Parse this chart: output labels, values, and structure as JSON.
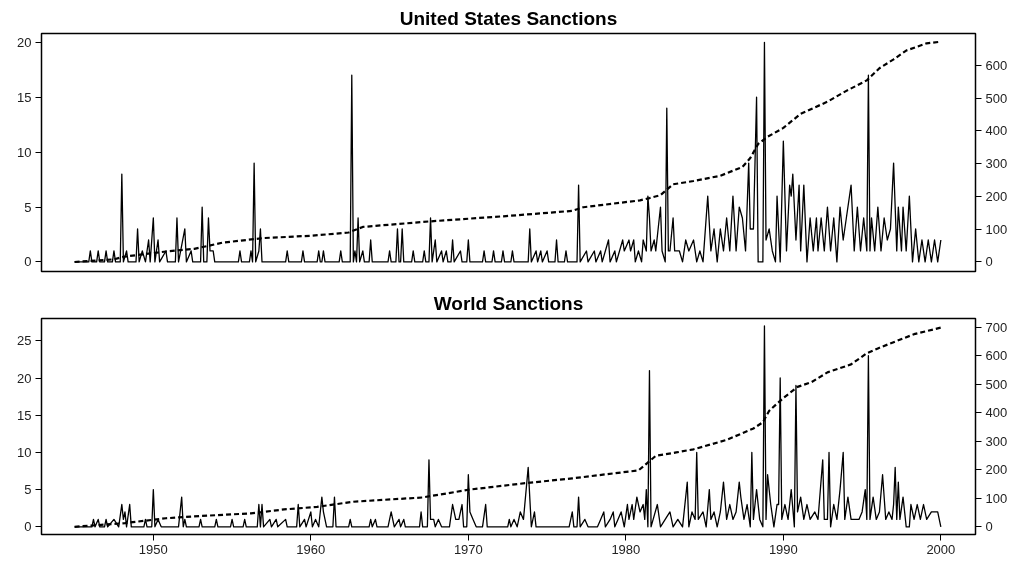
{
  "chart_data": [
    {
      "type": "line",
      "title": "United States Sanctions",
      "xlim": [
        1942.9,
        2002.2
      ],
      "ylim": [
        -0.87,
        20.8
      ],
      "yticks": [
        0,
        5,
        10,
        15,
        20
      ],
      "y2lim": [
        -29,
        697
      ],
      "y2ticks": [
        0,
        100,
        200,
        300,
        400,
        500,
        600
      ],
      "tick_labels": "y",
      "series": [
        {
          "color": "#000000",
          "line_style": "solid",
          "x": [
            1945.0,
            1945.9,
            1946.0,
            1946.1,
            1946.4,
            1946.5,
            1946.6,
            1946.9,
            1947.0,
            1947.1,
            1947.4,
            1947.5,
            1947.6,
            1947.9,
            1948.0,
            1948.1,
            1948.3,
            1948.4,
            1948.9,
            1949.0,
            1949.1,
            1949.3,
            1949.5,
            1949.7,
            1949.8,
            1950.0,
            1950.1,
            1950.3,
            1950.4,
            1950.8,
            1950.9,
            1951.4,
            1951.5,
            1951.6,
            1952.0,
            1952.1,
            1952.4,
            1952.5,
            1953.0,
            1953.1,
            1953.2,
            1953.4,
            1953.5,
            1953.6,
            1953.8,
            1953.9,
            1955.4,
            1955.5,
            1955.6,
            1956.1,
            1956.2,
            1956.3,
            1956.4,
            1956.5,
            1956.7,
            1956.8,
            1956.9,
            1958.4,
            1958.5,
            1958.6,
            1959.4,
            1959.5,
            1959.6,
            1960.4,
            1960.5,
            1960.6,
            1960.7,
            1960.8,
            1960.9,
            1961.8,
            1961.9,
            1962.0,
            1962.5,
            1962.6,
            1962.7,
            1962.8,
            1962.9,
            1963.0,
            1963.1,
            1963.3,
            1963.4,
            1963.7,
            1963.8,
            1963.9,
            1964.9,
            1965.0,
            1965.1,
            1965.4,
            1965.5,
            1965.6,
            1965.7,
            1965.8,
            1965.9,
            1966.4,
            1966.5,
            1966.6,
            1967.1,
            1967.2,
            1967.3,
            1967.5,
            1967.6,
            1967.7,
            1967.9,
            1968.0,
            1968.3,
            1968.4,
            1968.6,
            1968.7,
            1968.9,
            1969.0,
            1969.1,
            1969.5,
            1969.6,
            1969.9,
            1970.0,
            1970.1,
            1970.9,
            1971.0,
            1971.1,
            1971.5,
            1971.6,
            1971.7,
            1972.1,
            1972.2,
            1972.3,
            1972.7,
            1972.8,
            1972.9,
            1973.8,
            1973.9,
            1974.0,
            1974.3,
            1974.4,
            1974.6,
            1974.7,
            1975.0,
            1975.1,
            1975.5,
            1975.6,
            1975.7,
            1976.1,
            1976.2,
            1976.3,
            1976.9,
            1977.0,
            1977.1,
            1977.5,
            1977.6,
            1978.0,
            1978.1,
            1978.4,
            1978.5,
            1978.9,
            1979.0,
            1979.3,
            1979.4,
            1979.8,
            1979.9,
            1980.2,
            1980.3,
            1980.5,
            1980.6,
            1980.8,
            1981.0,
            1981.1,
            1981.3,
            1981.4,
            1981.5,
            1981.6,
            1981.8,
            1981.9,
            1982.2,
            1982.3,
            1982.5,
            1982.6,
            1982.7,
            1982.8,
            1983.0,
            1983.1,
            1983.4,
            1983.6,
            1983.8,
            1984.0,
            1984.3,
            1984.5,
            1984.7,
            1984.9,
            1985.2,
            1985.4,
            1985.6,
            1985.8,
            1986.0,
            1986.2,
            1986.4,
            1986.6,
            1986.8,
            1987.0,
            1987.2,
            1987.4,
            1987.6,
            1987.8,
            1987.9,
            1988.1,
            1988.3,
            1988.4,
            1988.7,
            1988.8,
            1988.9,
            1989.1,
            1989.3,
            1989.5,
            1989.6,
            1989.8,
            1990.0,
            1990.2,
            1990.4,
            1990.5,
            1990.6,
            1990.8,
            1991.0,
            1991.1,
            1991.3,
            1991.5,
            1991.7,
            1991.9,
            1992.1,
            1992.2,
            1992.4,
            1992.6,
            1992.8,
            1993.0,
            1993.2,
            1993.4,
            1993.6,
            1993.8,
            1994.0,
            1994.3,
            1994.5,
            1994.7,
            1994.9,
            1995.1,
            1995.3,
            1995.4,
            1995.5,
            1995.6,
            1995.8,
            1996.0,
            1996.2,
            1996.4,
            1996.6,
            1996.8,
            1997.0,
            1997.2,
            1997.3,
            1997.5,
            1997.6,
            1997.8,
            1998.0,
            1998.2,
            1998.4,
            1998.6,
            1998.8,
            1999.0,
            1999.2,
            1999.4,
            1999.6,
            1999.8,
            2000.0
          ],
          "values": [
            0,
            0,
            1,
            0,
            0,
            1,
            0,
            0,
            1,
            0,
            0,
            1,
            0,
            0,
            8,
            0,
            1,
            0,
            0,
            3,
            0,
            1,
            0,
            2,
            0,
            4,
            0,
            2,
            0,
            1,
            0,
            0,
            4,
            0,
            3,
            0,
            1,
            0,
            0,
            5,
            0,
            0,
            4,
            1,
            1,
            0,
            0,
            1,
            0,
            0,
            1,
            0,
            9,
            0,
            1,
            3,
            0,
            0,
            1,
            0,
            0,
            1,
            0,
            0,
            1,
            0,
            0,
            1,
            0,
            0,
            1,
            0,
            0,
            17,
            0,
            1,
            0,
            4,
            0,
            1,
            0,
            0,
            2,
            0,
            0,
            1,
            0,
            0,
            3,
            0,
            0,
            3,
            0,
            0,
            1,
            0,
            0,
            1,
            0,
            0,
            4,
            0,
            2,
            0,
            1,
            0,
            1,
            0,
            0,
            2,
            0,
            1,
            0,
            0,
            2,
            0,
            0,
            1,
            0,
            0,
            1,
            0,
            0,
            1,
            0,
            0,
            1,
            0,
            0,
            3,
            0,
            1,
            0,
            1,
            0,
            1,
            0,
            0,
            2,
            0,
            0,
            1,
            0,
            0,
            7,
            0,
            1,
            0,
            1,
            0,
            1,
            0,
            2,
            0,
            1,
            0,
            2,
            1,
            2,
            1,
            2,
            0,
            1,
            0,
            2,
            1,
            6,
            4,
            1,
            2,
            1,
            5,
            1,
            0,
            14,
            1,
            1,
            4,
            1,
            1,
            0,
            2,
            1,
            2,
            0,
            1,
            0,
            6,
            1,
            3,
            0,
            3,
            1,
            4,
            1,
            6,
            1,
            5,
            4,
            1,
            9,
            3,
            3,
            15,
            0,
            0,
            20,
            2,
            3,
            1,
            0,
            6,
            0,
            11,
            1,
            7,
            6,
            8,
            2,
            7,
            1,
            7,
            0,
            4,
            1,
            4,
            1,
            4,
            1,
            5,
            1,
            4,
            0,
            5,
            2,
            4,
            7,
            1,
            5,
            1,
            4,
            1,
            17,
            1,
            4,
            1,
            5,
            1,
            4,
            2,
            3,
            9,
            1,
            5,
            1,
            5,
            1,
            6,
            0,
            3,
            0,
            2,
            0,
            2,
            0,
            2,
            0,
            2
          ]
        },
        {
          "color": "#000000",
          "line_style": "dashed",
          "axis": "y2",
          "x": [
            1945.0,
            1946.5,
            1947.5,
            1948.1,
            1950.8,
            1952.6,
            1954.4,
            1957.0,
            1960.0,
            1962.4,
            1963.3,
            1967.6,
            1972.4,
            1976.6,
            1977.3,
            1980.9,
            1981.5,
            1982.2,
            1983.0,
            1984.3,
            1986.0,
            1987.4,
            1987.9,
            1988.4,
            1989.0,
            1990.0,
            1991.1,
            1992.8,
            1994.0,
            1995.3,
            1996.1,
            1997.0,
            1997.8,
            1999.1,
            2000.0
          ],
          "values": [
            0,
            5,
            8,
            16,
            32,
            40,
            59,
            73,
            80,
            90,
            107,
            124,
            140,
            156,
            167,
            188,
            195,
            204,
            237,
            247,
            263,
            290,
            317,
            360,
            382,
            409,
            452,
            489,
            522,
            554,
            591,
            618,
            645,
            667,
            672
          ]
        }
      ]
    },
    {
      "type": "line",
      "title": "World Sanctions",
      "xlim": [
        1942.9,
        2002.2
      ],
      "xticks": [
        1950,
        1960,
        1970,
        1980,
        1990,
        2000
      ],
      "ylim": [
        -1.03,
        28.0
      ],
      "yticks": [
        0,
        5,
        10,
        15,
        20,
        25
      ],
      "y2lim": [
        -27,
        731
      ],
      "y2ticks": [
        0,
        100,
        200,
        300,
        400,
        500,
        600,
        700
      ],
      "series": [
        {
          "color": "#000000",
          "line_style": "solid",
          "x": [
            1945.0,
            1946.1,
            1946.2,
            1946.3,
            1946.5,
            1946.6,
            1946.9,
            1947.0,
            1947.1,
            1947.5,
            1947.8,
            1948.0,
            1948.1,
            1948.2,
            1948.3,
            1948.5,
            1948.6,
            1949.4,
            1949.5,
            1949.6,
            1949.9,
            1950.0,
            1950.1,
            1950.3,
            1950.5,
            1951.6,
            1951.8,
            1951.9,
            1952.0,
            1952.1,
            1952.9,
            1953.0,
            1953.1,
            1953.9,
            1954.0,
            1954.1,
            1954.9,
            1955.0,
            1955.1,
            1955.7,
            1955.8,
            1955.9,
            1956.6,
            1956.7,
            1956.8,
            1956.9,
            1957.0,
            1957.4,
            1957.5,
            1957.8,
            1957.9,
            1958.4,
            1958.5,
            1959.1,
            1959.2,
            1959.3,
            1959.6,
            1959.7,
            1960.0,
            1960.1,
            1960.3,
            1960.5,
            1960.7,
            1960.8,
            1961.0,
            1961.4,
            1961.5,
            1961.6,
            1962.4,
            1962.5,
            1962.6,
            1963.7,
            1963.8,
            1963.9,
            1964.1,
            1964.2,
            1964.9,
            1965.1,
            1965.3,
            1965.6,
            1965.7,
            1965.9,
            1966.0,
            1966.9,
            1967.0,
            1967.1,
            1967.4,
            1967.5,
            1967.6,
            1967.8,
            1967.9,
            1968.1,
            1968.3,
            1968.8,
            1969.0,
            1969.2,
            1969.4,
            1969.6,
            1969.7,
            1969.9,
            1970.0,
            1970.1,
            1970.3,
            1970.5,
            1970.9,
            1971.1,
            1971.2,
            1972.5,
            1972.6,
            1972.7,
            1972.9,
            1973.1,
            1973.3,
            1973.5,
            1973.8,
            1974.0,
            1974.2,
            1974.3,
            1976.4,
            1976.6,
            1976.7,
            1976.9,
            1977.0,
            1977.1,
            1977.4,
            1977.6,
            1978.2,
            1978.4,
            1978.6,
            1978.7,
            1979.0,
            1979.2,
            1979.3,
            1979.5,
            1979.7,
            1979.9,
            1980.1,
            1980.2,
            1980.4,
            1980.5,
            1980.7,
            1980.9,
            1981.1,
            1981.2,
            1981.3,
            1981.4,
            1981.5,
            1981.6,
            1982.0,
            1982.2,
            1982.5,
            1982.8,
            1983.0,
            1983.3,
            1983.6,
            1983.9,
            1984.0,
            1984.2,
            1984.4,
            1984.5,
            1984.6,
            1984.9,
            1985.1,
            1985.3,
            1985.4,
            1985.6,
            1985.8,
            1986.0,
            1986.2,
            1986.4,
            1986.6,
            1986.8,
            1987.0,
            1987.2,
            1987.3,
            1987.5,
            1987.7,
            1987.9,
            1988.0,
            1988.1,
            1988.3,
            1988.5,
            1988.7,
            1988.8,
            1988.9,
            1989.0,
            1989.2,
            1989.4,
            1989.6,
            1989.7,
            1989.8,
            1989.9,
            1990.1,
            1990.3,
            1990.5,
            1990.7,
            1990.8,
            1990.9,
            1991.1,
            1991.3,
            1991.5,
            1991.7,
            1992.0,
            1992.2,
            1992.5,
            1992.6,
            1992.8,
            1992.9,
            1993.0,
            1993.2,
            1993.4,
            1993.6,
            1993.8,
            1993.9,
            1994.1,
            1994.3,
            1994.5,
            1994.8,
            1995.0,
            1995.2,
            1995.3,
            1995.4,
            1995.5,
            1995.7,
            1995.9,
            1996.1,
            1996.3,
            1996.5,
            1996.7,
            1996.9,
            1997.0,
            1997.1,
            1997.2,
            1997.3,
            1997.4,
            1997.6,
            1997.8,
            1998.0,
            1998.1,
            1998.3,
            1998.5,
            1998.7,
            1998.9,
            1999.1,
            1999.4,
            1999.6,
            1999.8,
            2000.0
          ],
          "values": [
            0,
            0,
            1,
            0,
            1,
            0,
            0,
            1,
            0,
            1,
            0,
            3,
            1,
            2,
            0,
            3,
            0,
            0,
            1,
            0,
            0,
            5,
            0,
            1,
            0,
            0,
            4,
            0,
            1,
            0,
            0,
            1,
            0,
            0,
            1,
            0,
            0,
            1,
            0,
            0,
            1,
            0,
            0,
            3,
            0,
            3,
            0,
            1,
            0,
            1,
            0,
            1,
            0,
            0,
            3,
            0,
            1,
            0,
            2,
            0,
            1,
            0,
            4,
            2,
            0,
            0,
            4,
            0,
            0,
            1,
            0,
            0,
            1,
            0,
            1,
            0,
            0,
            2,
            0,
            1,
            0,
            1,
            0,
            0,
            2,
            0,
            0,
            9,
            1,
            1,
            0,
            1,
            0,
            0,
            3,
            1,
            1,
            3,
            0,
            0,
            7,
            2,
            1,
            0,
            0,
            3,
            0,
            0,
            1,
            0,
            1,
            0,
            2,
            1,
            8,
            0,
            2,
            0,
            0,
            2,
            0,
            0,
            4,
            0,
            1,
            0,
            0,
            1,
            2,
            0,
            1,
            2,
            0,
            1,
            2,
            0,
            3,
            1,
            3,
            1,
            4,
            2,
            3,
            1,
            5,
            0,
            21,
            0,
            3,
            0,
            1,
            2,
            0,
            1,
            0,
            6,
            0,
            2,
            1,
            10,
            1,
            2,
            0,
            5,
            1,
            2,
            0,
            2,
            6,
            1,
            3,
            1,
            2,
            6,
            4,
            1,
            3,
            0,
            10,
            1,
            5,
            1,
            0,
            27,
            1,
            7,
            3,
            0,
            3,
            3,
            20,
            1,
            3,
            1,
            5,
            0,
            19,
            2,
            4,
            1,
            3,
            1,
            2,
            1,
            9,
            1,
            1,
            10,
            0,
            3,
            1,
            5,
            10,
            1,
            4,
            1,
            1,
            1,
            2,
            5,
            1,
            23,
            1,
            4,
            1,
            2,
            7,
            1,
            2,
            1,
            3,
            8,
            1,
            6,
            1,
            4,
            0,
            0,
            3,
            1,
            3,
            1,
            3,
            1,
            2,
            2,
            2,
            0
          ]
        },
        {
          "color": "#000000",
          "line_style": "dashed",
          "axis": "y2",
          "x": [
            1945.0,
            1948.2,
            1950.8,
            1953.0,
            1956.2,
            1958.3,
            1960.4,
            1962.7,
            1967.1,
            1970.0,
            1973.6,
            1976.6,
            1980.8,
            1981.3,
            1981.9,
            1983.2,
            1984.3,
            1986.4,
            1988.1,
            1988.7,
            1989.1,
            1990.0,
            1990.9,
            1991.8,
            1992.8,
            1994.3,
            1995.3,
            1996.0,
            1997.0,
            1998.3,
            2000.0
          ],
          "values": [
            0,
            13,
            30,
            38,
            47,
            61,
            70,
            88,
            103,
            130,
            153,
            170,
            198,
            221,
            249,
            261,
            272,
            305,
            345,
            367,
            407,
            452,
            491,
            508,
            542,
            570,
            609,
            626,
            648,
            676,
            699
          ]
        }
      ]
    }
  ]
}
